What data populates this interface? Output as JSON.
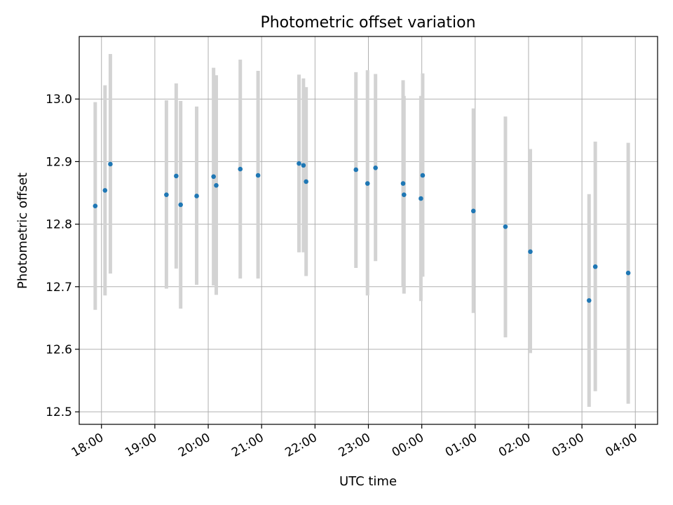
{
  "chart_data": {
    "type": "scatter",
    "title": "Photometric offset variation",
    "xlabel": "UTC time",
    "ylabel": "Photometric offset",
    "x_axis": {
      "kind": "time",
      "xlim": [
        "17:35",
        "04:25"
      ],
      "ticks": [
        "18:00",
        "19:00",
        "20:00",
        "21:00",
        "22:00",
        "23:00",
        "00:00",
        "01:00",
        "02:00",
        "03:00",
        "04:00"
      ]
    },
    "y_axis": {
      "ylim": [
        12.48,
        13.1
      ],
      "ticks": [
        "12.5",
        "12.6",
        "12.7",
        "12.8",
        "12.9",
        "13.0"
      ]
    },
    "grid": true,
    "colors": {
      "marker": "#1f77b4",
      "errorbar": "#d3d3d3",
      "grid": "#b0b0b0"
    },
    "points": [
      {
        "t": "17:53",
        "y": 12.829,
        "lo": 12.663,
        "hi": 12.995
      },
      {
        "t": "18:04",
        "y": 12.854,
        "lo": 12.686,
        "hi": 13.022
      },
      {
        "t": "18:10",
        "y": 12.896,
        "lo": 12.721,
        "hi": 13.072
      },
      {
        "t": "19:13",
        "y": 12.847,
        "lo": 12.697,
        "hi": 12.998
      },
      {
        "t": "19:24",
        "y": 12.877,
        "lo": 12.729,
        "hi": 13.025
      },
      {
        "t": "19:29",
        "y": 12.831,
        "lo": 12.665,
        "hi": 12.997
      },
      {
        "t": "19:47",
        "y": 12.845,
        "lo": 12.703,
        "hi": 12.988
      },
      {
        "t": "20:06",
        "y": 12.876,
        "lo": 12.702,
        "hi": 13.05
      },
      {
        "t": "20:09",
        "y": 12.862,
        "lo": 12.687,
        "hi": 13.038
      },
      {
        "t": "20:36",
        "y": 12.888,
        "lo": 12.713,
        "hi": 13.063
      },
      {
        "t": "20:56",
        "y": 12.878,
        "lo": 12.713,
        "hi": 13.045
      },
      {
        "t": "21:42",
        "y": 12.897,
        "lo": 12.755,
        "hi": 13.039
      },
      {
        "t": "21:47",
        "y": 12.894,
        "lo": 12.755,
        "hi": 13.033
      },
      {
        "t": "21:50",
        "y": 12.868,
        "lo": 12.717,
        "hi": 13.019
      },
      {
        "t": "22:46",
        "y": 12.887,
        "lo": 12.73,
        "hi": 13.043
      },
      {
        "t": "22:59",
        "y": 12.865,
        "lo": 12.686,
        "hi": 13.046
      },
      {
        "t": "23:08",
        "y": 12.89,
        "lo": 12.741,
        "hi": 13.04
      },
      {
        "t": "23:39",
        "y": 12.865,
        "lo": 12.7,
        "hi": 13.03
      },
      {
        "t": "23:40",
        "y": 12.847,
        "lo": 12.689,
        "hi": 13.005
      },
      {
        "t": "23:59",
        "y": 12.841,
        "lo": 12.677,
        "hi": 13.005
      },
      {
        "t": "00:01",
        "y": 12.878,
        "lo": 12.716,
        "hi": 13.041
      },
      {
        "t": "00:58",
        "y": 12.821,
        "lo": 12.658,
        "hi": 12.985
      },
      {
        "t": "01:34",
        "y": 12.796,
        "lo": 12.619,
        "hi": 12.972
      },
      {
        "t": "02:02",
        "y": 12.756,
        "lo": 12.594,
        "hi": 12.92
      },
      {
        "t": "03:08",
        "y": 12.678,
        "lo": 12.508,
        "hi": 12.848
      },
      {
        "t": "03:15",
        "y": 12.732,
        "lo": 12.533,
        "hi": 12.932
      },
      {
        "t": "03:52",
        "y": 12.722,
        "lo": 12.513,
        "hi": 12.93
      }
    ]
  }
}
